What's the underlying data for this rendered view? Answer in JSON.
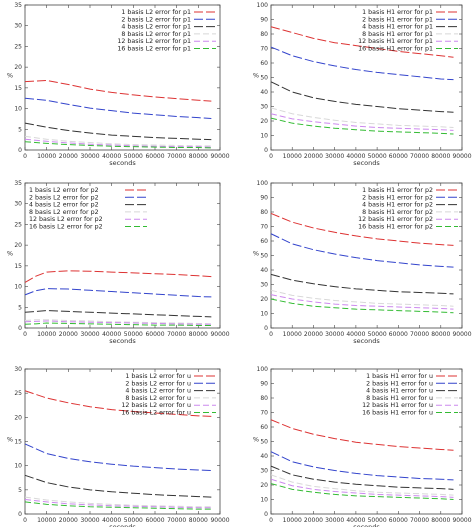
{
  "figure": {
    "background": "#ffffff"
  },
  "colors": [
    "#dd3333",
    "#3344cc",
    "#333333",
    "#d8d8d8",
    "#cc88ee",
    "#33bb33"
  ],
  "chart_data": [
    {
      "type": "line",
      "xlabel": "seconds",
      "ylabel": "%",
      "xlim": [
        0,
        90000
      ],
      "ylim": [
        0,
        35
      ],
      "xticks": [
        0,
        10000,
        20000,
        30000,
        40000,
        50000,
        60000,
        70000,
        80000,
        90000
      ],
      "xtick_labels": [
        "0",
        "10000",
        "20000",
        "30000",
        "40000",
        "50000",
        "60000",
        "70000",
        "80000",
        "90000"
      ],
      "yticks": [
        0,
        5,
        10,
        15,
        20,
        25,
        30,
        35
      ],
      "ytick_labels": [
        "0",
        "5",
        "10",
        "15",
        "20",
        "25",
        "30",
        "35"
      ],
      "legend": "top-right",
      "x": [
        0,
        10000,
        20000,
        30000,
        40000,
        50000,
        60000,
        70000,
        80000,
        86000
      ],
      "series": [
        {
          "name": "1 basis L2 error for p1",
          "values": [
            16.5,
            16.8,
            15.8,
            14.7,
            13.9,
            13.3,
            12.8,
            12.4,
            12.0,
            11.8
          ]
        },
        {
          "name": "2 basis L2 error for p1",
          "values": [
            12.5,
            12.0,
            11.0,
            10.1,
            9.5,
            8.9,
            8.5,
            8.1,
            7.8,
            7.6
          ]
        },
        {
          "name": "4 basis L2 error for p1",
          "values": [
            6.5,
            5.5,
            4.7,
            4.1,
            3.6,
            3.3,
            3.0,
            2.8,
            2.6,
            2.5
          ]
        },
        {
          "name": "8 basis L2 error for p1",
          "values": [
            3.3,
            2.6,
            2.1,
            1.8,
            1.5,
            1.3,
            1.2,
            1.1,
            1.0,
            1.0
          ]
        },
        {
          "name": "12 basis L2 error for p1",
          "values": [
            2.6,
            2.1,
            1.7,
            1.4,
            1.2,
            1.0,
            0.9,
            0.8,
            0.8,
            0.7
          ]
        },
        {
          "name": "16 basis L2 error for p1",
          "values": [
            2.0,
            1.6,
            1.3,
            1.1,
            0.9,
            0.8,
            0.7,
            0.6,
            0.6,
            0.5
          ]
        }
      ]
    },
    {
      "type": "line",
      "xlabel": "seconds",
      "ylabel": "%",
      "xlim": [
        0,
        90000
      ],
      "ylim": [
        0,
        100
      ],
      "xticks": [
        0,
        10000,
        20000,
        30000,
        40000,
        50000,
        60000,
        70000,
        80000,
        90000
      ],
      "xtick_labels": [
        "0",
        "10000",
        "20000",
        "30000",
        "40000",
        "50000",
        "60000",
        "70000",
        "80000",
        "90000"
      ],
      "yticks": [
        0,
        10,
        20,
        30,
        40,
        50,
        60,
        70,
        80,
        90,
        100
      ],
      "ytick_labels": [
        "0",
        "10",
        "20",
        "30",
        "40",
        "50",
        "60",
        "70",
        "80",
        "90",
        "100"
      ],
      "legend": "top-right",
      "x": [
        0,
        10000,
        20000,
        30000,
        40000,
        50000,
        60000,
        70000,
        80000,
        86000
      ],
      "series": [
        {
          "name": "1 basis H1 error for p1",
          "values": [
            85,
            81,
            77,
            74,
            72,
            70,
            68,
            66.5,
            65,
            64
          ]
        },
        {
          "name": "2 basis H1 error for p1",
          "values": [
            71,
            65,
            61,
            58,
            55.5,
            53.5,
            52,
            50.5,
            49,
            48.5
          ]
        },
        {
          "name": "4 basis H1 error for p1",
          "values": [
            47,
            40,
            36,
            33.5,
            31.5,
            30,
            28.5,
            27.5,
            26.5,
            26
          ]
        },
        {
          "name": "8 basis H1 error for p1",
          "values": [
            29,
            25,
            22.5,
            20.5,
            19,
            18,
            17,
            16.5,
            16,
            15.5
          ]
        },
        {
          "name": "12 basis H1 error for p1",
          "values": [
            25,
            21.5,
            19.5,
            18,
            16.5,
            15.5,
            15,
            14.5,
            14,
            13.5
          ]
        },
        {
          "name": "16 basis H1 error for p1",
          "values": [
            22,
            18.5,
            16.5,
            15,
            14,
            13,
            12.5,
            12,
            11.5,
            11
          ]
        }
      ]
    },
    {
      "type": "line",
      "xlabel": "seconds",
      "ylabel": "%",
      "xlim": [
        0,
        90000
      ],
      "ylim": [
        0,
        35
      ],
      "xticks": [
        0,
        10000,
        20000,
        30000,
        40000,
        50000,
        60000,
        70000,
        80000,
        90000
      ],
      "xtick_labels": [
        "0",
        "10000",
        "20000",
        "30000",
        "40000",
        "50000",
        "60000",
        "70000",
        "80000",
        "90000"
      ],
      "yticks": [
        0,
        5,
        10,
        15,
        20,
        25,
        30,
        35
      ],
      "ytick_labels": [
        "0",
        "5",
        "10",
        "15",
        "20",
        "25",
        "30",
        "35"
      ],
      "legend": "top-left",
      "x": [
        0,
        5000,
        10000,
        20000,
        30000,
        40000,
        50000,
        60000,
        70000,
        80000,
        86000
      ],
      "series": [
        {
          "name": "1 basis L2 error for p2",
          "values": [
            11.0,
            12.5,
            13.5,
            13.8,
            13.7,
            13.5,
            13.3,
            13.1,
            12.9,
            12.6,
            12.4
          ]
        },
        {
          "name": "2 basis L2 error for p2",
          "values": [
            8.0,
            9.0,
            9.5,
            9.4,
            9.1,
            8.8,
            8.5,
            8.2,
            7.9,
            7.6,
            7.5
          ]
        },
        {
          "name": "4 basis L2 error for p2",
          "values": [
            3.8,
            4.0,
            4.2,
            4.0,
            3.8,
            3.6,
            3.4,
            3.2,
            3.0,
            2.8,
            2.7
          ]
        },
        {
          "name": "8 basis L2 error for p2",
          "values": [
            1.8,
            2.0,
            2.0,
            1.8,
            1.7,
            1.5,
            1.4,
            1.3,
            1.2,
            1.1,
            1.0
          ]
        },
        {
          "name": "12 basis L2 error for p2",
          "values": [
            1.5,
            1.6,
            1.7,
            1.5,
            1.4,
            1.3,
            1.2,
            1.1,
            1.0,
            0.9,
            0.9
          ]
        },
        {
          "name": "16 basis L2 error for p2",
          "values": [
            0.9,
            1.0,
            1.2,
            1.1,
            1.0,
            0.9,
            0.8,
            0.7,
            0.7,
            0.6,
            0.6
          ]
        }
      ]
    },
    {
      "type": "line",
      "xlabel": "seconds",
      "ylabel": "%",
      "xlim": [
        0,
        90000
      ],
      "ylim": [
        0,
        100
      ],
      "xticks": [
        0,
        10000,
        20000,
        30000,
        40000,
        50000,
        60000,
        70000,
        80000,
        90000
      ],
      "xtick_labels": [
        "0",
        "10000",
        "20000",
        "30000",
        "40000",
        "50000",
        "60000",
        "70000",
        "80000",
        "90000"
      ],
      "yticks": [
        0,
        10,
        20,
        30,
        40,
        50,
        60,
        70,
        80,
        90,
        100
      ],
      "ytick_labels": [
        "0",
        "10",
        "20",
        "30",
        "40",
        "50",
        "60",
        "70",
        "80",
        "90",
        "100"
      ],
      "legend": "top-right",
      "x": [
        0,
        10000,
        20000,
        30000,
        40000,
        50000,
        60000,
        70000,
        80000,
        86000
      ],
      "series": [
        {
          "name": "1 basis H1 error for p2",
          "values": [
            79,
            73,
            69,
            66,
            63.5,
            61.5,
            60,
            58.5,
            57.5,
            57
          ]
        },
        {
          "name": "2 basis H1 error for p2",
          "values": [
            65,
            58,
            54,
            51,
            48.5,
            46.5,
            45,
            43.5,
            42.5,
            42
          ]
        },
        {
          "name": "4 basis H1 error for p2",
          "values": [
            37,
            33,
            30.5,
            28.5,
            27,
            26,
            25,
            24.5,
            24,
            23.5
          ]
        },
        {
          "name": "8 basis H1 error for p2",
          "values": [
            26,
            22.5,
            20.5,
            19,
            18,
            17,
            16.5,
            16,
            15.5,
            15
          ]
        },
        {
          "name": "12 basis H1 error for p2",
          "values": [
            23,
            20,
            18,
            16.5,
            15.5,
            15,
            14.5,
            14,
            13.5,
            13
          ]
        },
        {
          "name": "16 basis H1 error for p2",
          "values": [
            20,
            17,
            15,
            14,
            13,
            12.5,
            12,
            11.5,
            11,
            10.5
          ]
        }
      ]
    },
    {
      "type": "line",
      "xlabel": "seconds",
      "ylabel": "%",
      "xlim": [
        0,
        90000
      ],
      "ylim": [
        0,
        30
      ],
      "xticks": [
        0,
        10000,
        20000,
        30000,
        40000,
        50000,
        60000,
        70000,
        80000,
        90000
      ],
      "xtick_labels": [
        "0",
        "10000",
        "20000",
        "30000",
        "40000",
        "50000",
        "60000",
        "70000",
        "80000",
        "90000"
      ],
      "yticks": [
        0,
        5,
        10,
        15,
        20,
        25,
        30
      ],
      "ytick_labels": [
        "0",
        "5",
        "10",
        "15",
        "20",
        "25",
        "30"
      ],
      "legend": "top-right",
      "x": [
        0,
        10000,
        20000,
        30000,
        40000,
        50000,
        60000,
        70000,
        80000,
        86000
      ],
      "series": [
        {
          "name": "1 basis L2 error for u",
          "values": [
            25.5,
            24.0,
            23.0,
            22.2,
            21.6,
            21.2,
            20.9,
            20.6,
            20.3,
            20.2
          ]
        },
        {
          "name": "2 basis L2 error for u",
          "values": [
            14.5,
            12.5,
            11.5,
            10.8,
            10.3,
            9.9,
            9.6,
            9.3,
            9.1,
            9.0
          ]
        },
        {
          "name": "4 basis L2 error for u",
          "values": [
            8.0,
            6.5,
            5.6,
            5.0,
            4.6,
            4.3,
            4.0,
            3.8,
            3.6,
            3.5
          ]
        },
        {
          "name": "8 basis L2 error for u",
          "values": [
            3.5,
            2.9,
            2.5,
            2.2,
            2.0,
            1.8,
            1.7,
            1.6,
            1.5,
            1.5
          ]
        },
        {
          "name": "12 basis L2 error for u",
          "values": [
            3.0,
            2.5,
            2.1,
            1.9,
            1.7,
            1.6,
            1.5,
            1.4,
            1.3,
            1.3
          ]
        },
        {
          "name": "16 basis L2 error for u",
          "values": [
            2.5,
            2.0,
            1.7,
            1.5,
            1.4,
            1.3,
            1.2,
            1.1,
            1.0,
            1.0
          ]
        }
      ]
    },
    {
      "type": "line",
      "xlabel": "seconds",
      "ylabel": "%",
      "xlim": [
        0,
        90000
      ],
      "ylim": [
        0,
        100
      ],
      "xticks": [
        0,
        10000,
        20000,
        30000,
        40000,
        50000,
        60000,
        70000,
        80000,
        90000
      ],
      "xtick_labels": [
        "0",
        "10000",
        "20000",
        "30000",
        "40000",
        "50000",
        "60000",
        "70000",
        "80000",
        "90000"
      ],
      "yticks": [
        0,
        10,
        20,
        30,
        40,
        50,
        60,
        70,
        80,
        90,
        100
      ],
      "ytick_labels": [
        "0",
        "10",
        "20",
        "30",
        "40",
        "50",
        "60",
        "70",
        "80",
        "90",
        "100"
      ],
      "legend": "top-right",
      "x": [
        0,
        10000,
        20000,
        30000,
        40000,
        50000,
        60000,
        70000,
        80000,
        86000
      ],
      "series": [
        {
          "name": "1 basis H1 error for u",
          "values": [
            65,
            59,
            55,
            52,
            49.5,
            48,
            46.5,
            45.5,
            44.5,
            44
          ]
        },
        {
          "name": "2 basis H1 error for u",
          "values": [
            43,
            36,
            32.5,
            30,
            28,
            26.5,
            25.5,
            24.5,
            24,
            23.5
          ]
        },
        {
          "name": "4 basis H1 error for u",
          "values": [
            33,
            27,
            24,
            22,
            20.5,
            19.5,
            18.5,
            18,
            17.5,
            17
          ]
        },
        {
          "name": "8 basis H1 error for u",
          "values": [
            27,
            22,
            19,
            17.5,
            16,
            15,
            14.5,
            14,
            13.5,
            13
          ]
        },
        {
          "name": "12 basis H1 error for u",
          "values": [
            24,
            19.5,
            17,
            15.5,
            14.5,
            13.5,
            13,
            12.5,
            12,
            11.5
          ]
        },
        {
          "name": "16 basis H1 error for u",
          "values": [
            21,
            17,
            15,
            13.5,
            12.5,
            12,
            11.5,
            11,
            10.5,
            10
          ]
        }
      ]
    }
  ]
}
